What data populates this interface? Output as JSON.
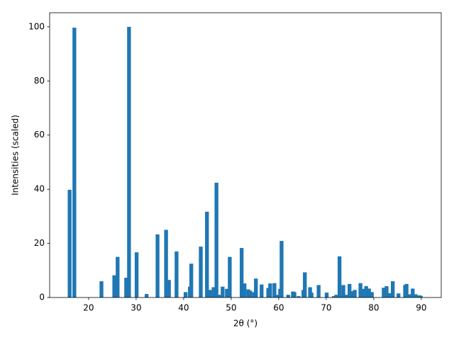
{
  "chart_data": {
    "type": "bar",
    "x_label": "2θ (°)",
    "y_label": "Intensities (scaled)",
    "color": "#1f77b4",
    "x": [
      16.0,
      17.0,
      22.7,
      25.4,
      26.1,
      27.9,
      28.5,
      30.1,
      32.2,
      34.5,
      36.3,
      36.9,
      38.5,
      40.4,
      41.3,
      41.6,
      43.6,
      44.9,
      45.5,
      46.3,
      46.9,
      47.6,
      48.2,
      49.1,
      49.7,
      52.2,
      52.8,
      53.6,
      54.0,
      54.8,
      55.2,
      56.4,
      57.8,
      58.2,
      59.1,
      59.9,
      60.3,
      60.6,
      62.0,
      63.0,
      63.3,
      64.2,
      65.2,
      65.5,
      66.6,
      66.9,
      68.4,
      70.1,
      71.6,
      72.1,
      72.8,
      73.6,
      74.2,
      74.9,
      75.5,
      76.0,
      77.2,
      77.6,
      78.4,
      79.0,
      79.6,
      82.1,
      82.7,
      83.3,
      84.0,
      85.2,
      86.6,
      86.9,
      87.5,
      88.2,
      88.8,
      89.6,
      89.9
    ],
    "values": [
      39.8,
      99.7,
      6,
      8.2,
      15,
      7.3,
      100,
      16.7,
      1.3,
      23.3,
      25,
      6.5,
      17,
      2,
      4,
      12.5,
      18.8,
      31.7,
      2.8,
      3.8,
      42.4,
      1,
      4,
      3.2,
      15,
      18.3,
      5.2,
      3,
      2.5,
      2,
      7,
      4.8,
      3.5,
      5.2,
      5.3,
      1,
      3.2,
      20.9,
      1,
      2.2,
      2,
      0.5,
      2.8,
      9.3,
      3.8,
      1.8,
      4.6,
      1.8,
      0.5,
      1,
      15.2,
      4.6,
      1,
      5,
      2.3,
      2.8,
      5.3,
      3.2,
      4.2,
      3.3,
      2,
      3.6,
      4.2,
      1.6,
      6,
      1.5,
      4.6,
      5,
      1.2,
      3.3,
      1.2,
      0.8,
      0.6
    ],
    "xlim": [
      11.8,
      94.2
    ],
    "ylim": [
      0,
      105.2
    ],
    "xticks": [
      20,
      30,
      40,
      50,
      60,
      70,
      80,
      90
    ],
    "yticks": [
      0,
      20,
      40,
      60,
      80,
      100
    ]
  }
}
